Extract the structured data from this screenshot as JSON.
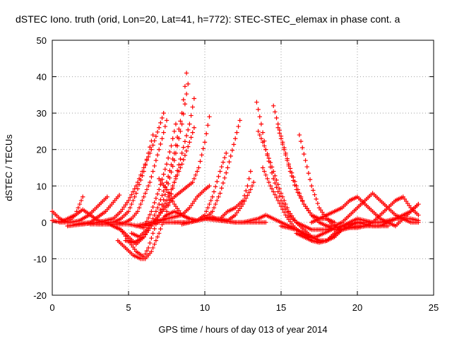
{
  "chart_data": {
    "type": "scatter",
    "title": "dSTEC Iono. truth (orid, Lon=20, Lat=41, h=772): STEC-STEC_elemax in phase cont. a",
    "xlabel": "GPS time / hours of day 013 of year 2014",
    "ylabel": "dSTEC  / TECUs",
    "xlim": [
      0,
      25
    ],
    "ylim": [
      -20,
      50
    ],
    "xticks": [
      0,
      5,
      10,
      15,
      20,
      25
    ],
    "yticks": [
      -20,
      -10,
      0,
      10,
      20,
      30,
      40,
      50
    ],
    "grid": true,
    "marker": "+",
    "color": "#ff0000",
    "series": [
      {
        "x": [
          0.0,
          0.5,
          1.0,
          1.5,
          2.0
        ],
        "y": [
          3,
          1,
          0,
          2,
          7
        ]
      },
      {
        "x": [
          0.0,
          0.6,
          1.2,
          1.8,
          2.4,
          3.0,
          3.6
        ],
        "y": [
          0.5,
          0,
          0,
          0.5,
          2,
          4.5,
          7
        ]
      },
      {
        "x": [
          0.5,
          1.0,
          1.5,
          2.0,
          2.5,
          3.0,
          3.5,
          4.0,
          4.4
        ],
        "y": [
          0,
          1,
          2,
          3.5,
          2,
          0.5,
          0,
          0,
          0
        ]
      },
      {
        "x": [
          1.0,
          2.0,
          3.0,
          4.0,
          4.5,
          5.0,
          5.5,
          6.0,
          6.5,
          7.0,
          7.3
        ],
        "y": [
          -1,
          -0.5,
          0,
          1,
          3,
          6,
          10,
          15,
          20,
          26,
          30
        ]
      },
      {
        "x": [
          1.5,
          2.5,
          3.5,
          4.0,
          4.4
        ],
        "y": [
          -0.5,
          0,
          3,
          5.5,
          7.5
        ]
      },
      {
        "x": [
          2.0,
          3.0,
          4.0,
          4.5,
          5.0,
          5.5,
          6.0,
          6.3,
          6.6
        ],
        "y": [
          -0.5,
          0,
          0,
          1,
          3,
          8,
          14,
          19,
          24
        ]
      },
      {
        "x": [
          2.5,
          3.5,
          4.3,
          4.8,
          5.2,
          5.6,
          6.0,
          6.4,
          6.8,
          7.2,
          7.5
        ],
        "y": [
          -0.5,
          -0.5,
          -0.5,
          0,
          1,
          3,
          7,
          11,
          17,
          23,
          28
        ]
      },
      {
        "x": [
          3.0,
          4.0,
          5.0,
          5.6,
          6.0,
          6.5,
          7.0,
          7.5,
          7.8,
          8.1
        ],
        "y": [
          -0.5,
          -0.5,
          -0.5,
          -1,
          -1.5,
          3,
          9,
          16,
          21,
          27
        ]
      },
      {
        "x": [
          3.5,
          4.0,
          4.5,
          5.0,
          5.5,
          6.0,
          6.5,
          7.0,
          7.5,
          8.0,
          8.5,
          8.8
        ],
        "y": [
          0,
          -1,
          -2,
          -4,
          -6,
          -4,
          0,
          5,
          11,
          19,
          30,
          41
        ]
      },
      {
        "x": [
          4.0,
          4.5,
          5.0,
          5.5,
          6.0,
          6.3,
          6.6,
          7.0,
          7.5,
          8.0,
          8.5,
          8.9
        ],
        "y": [
          -1,
          -2,
          -5,
          -8,
          -9.5,
          -7,
          -3,
          2,
          9,
          17,
          27,
          38
        ]
      },
      {
        "x": [
          4.3,
          4.8,
          5.3,
          5.8,
          6.1,
          6.5,
          7.0,
          7.5,
          8.0,
          8.5,
          9.0,
          9.3
        ],
        "y": [
          -5,
          -7,
          -9,
          -10,
          -10,
          -8,
          -3,
          3,
          11,
          19,
          27,
          34
        ]
      },
      {
        "x": [
          4.8,
          5.4,
          6.0,
          6.5,
          7.0,
          7.5,
          8.0,
          8.5,
          9.0,
          9.3
        ],
        "y": [
          -5,
          -5.5,
          -4,
          -1,
          2,
          6,
          11,
          16,
          22,
          26
        ]
      },
      {
        "x": [
          5.2,
          5.7,
          6.2,
          6.8,
          7.4,
          8.0,
          8.6,
          9.2,
          9.6,
          10.0,
          10.3
        ],
        "y": [
          -3,
          -4,
          -2,
          1,
          4,
          7,
          9,
          11,
          15,
          22,
          29
        ]
      },
      {
        "x": [
          5.5,
          6.5,
          7.5,
          8.5,
          9.0,
          9.5,
          10.0,
          10.3
        ],
        "y": [
          -1,
          0,
          1,
          2,
          4,
          7,
          9,
          10
        ]
      },
      {
        "x": [
          6.0,
          7.0,
          7.5,
          8.0,
          8.5,
          9.0,
          9.5,
          10.0,
          10.5,
          11.0,
          11.4
        ],
        "y": [
          -1,
          0,
          2,
          3,
          2,
          1,
          0.5,
          2,
          7,
          14,
          19
        ]
      },
      {
        "x": [
          7.0,
          7.5,
          8.0,
          8.5,
          9.0,
          9.5,
          10.0,
          10.5,
          11.0,
          11.5,
          12.0,
          12.3
        ],
        "y": [
          12,
          9,
          5,
          2,
          1,
          0.5,
          1,
          3,
          8,
          15,
          23,
          28
        ]
      },
      {
        "x": [
          7.2,
          8.0,
          9.0,
          10.0,
          11.0,
          11.5,
          12.0,
          12.5,
          12.8,
          13.0
        ],
        "y": [
          0,
          0,
          0,
          1,
          1,
          3,
          4,
          6,
          10,
          14
        ]
      },
      {
        "x": [
          8.0,
          9.0,
          10.0,
          11.0,
          11.5,
          12.0,
          12.5,
          13.0,
          13.2
        ],
        "y": [
          0,
          0,
          1,
          1,
          0.5,
          2,
          5,
          9,
          11
        ]
      },
      {
        "x": [
          8.5,
          9.0,
          9.5,
          10.0,
          10.5,
          11.0,
          12.0,
          13.0,
          14.0
        ],
        "y": [
          -0.5,
          0,
          0.5,
          1,
          1.5,
          0.5,
          0,
          0,
          0
        ]
      },
      {
        "x": [
          9.0,
          10.0,
          11.0,
          12.0,
          12.5,
          13.0,
          13.5,
          14.0,
          14.5,
          15.0,
          15.5,
          16.0,
          16.5,
          17.0,
          17.5,
          18.0
        ],
        "y": [
          0,
          1,
          0.5,
          0,
          0,
          0.5,
          1,
          2,
          1,
          0,
          -1,
          -2,
          -3,
          -4,
          -5,
          -5
        ]
      },
      {
        "x": [
          13.4,
          13.7,
          14.0,
          14.5,
          15.0,
          15.5,
          16.0,
          16.5,
          17.0,
          18.0,
          19.0,
          20.0
        ],
        "y": [
          33,
          27,
          20,
          12,
          6,
          2,
          0,
          -1,
          -2,
          -2,
          -1,
          0
        ]
      },
      {
        "x": [
          13.5,
          14.0,
          14.5,
          15.0,
          15.5,
          16.0,
          16.5,
          17.0,
          17.5,
          18.0,
          18.5,
          19.0
        ],
        "y": [
          25,
          20,
          14,
          8,
          3,
          0,
          -2,
          -4,
          -5,
          -5,
          -4,
          -2
        ]
      },
      {
        "x": [
          13.8,
          14.3,
          14.8,
          15.3,
          15.8,
          16.3,
          16.8,
          17.3,
          17.8,
          18.3
        ],
        "y": [
          15,
          10,
          6,
          2,
          -1,
          -3,
          -4,
          -4,
          -3,
          -2
        ]
      },
      {
        "x": [
          14.5,
          14.8,
          15.1,
          15.5,
          16.0,
          16.5,
          17.0,
          17.5,
          18.0,
          18.5,
          19.0,
          19.5
        ],
        "y": [
          32,
          27,
          22,
          16,
          10,
          5,
          2,
          0,
          -1,
          -2,
          -2,
          -1
        ]
      },
      {
        "x": [
          14.8,
          15.2,
          15.6,
          16.0,
          16.5,
          17.0,
          17.5,
          18.0,
          18.5
        ],
        "y": [
          26,
          20,
          14,
          9,
          5,
          2,
          1,
          1,
          0
        ]
      },
      {
        "x": [
          16.2,
          16.6,
          17.0,
          17.5,
          18.0,
          18.5,
          19.0,
          19.5,
          20.0,
          20.5,
          21.0
        ],
        "y": [
          24,
          17,
          10,
          4,
          1,
          -1,
          -2,
          -1,
          0,
          0,
          0
        ]
      },
      {
        "x": [
          15.0,
          16.0,
          16.5,
          17.0,
          17.5,
          18.0,
          18.5,
          19.0,
          19.5,
          20.0,
          21.0,
          22.0
        ],
        "y": [
          -1,
          -2,
          -3,
          -5,
          -5.5,
          -5,
          -3,
          -1,
          0,
          1,
          0,
          0
        ]
      },
      {
        "x": [
          16.0,
          16.5,
          17.0,
          17.5,
          18.0,
          19.0,
          20.0,
          21.0,
          22.0
        ],
        "y": [
          -3,
          -4,
          -5,
          -5.5,
          -5,
          -2,
          -1,
          -1,
          -1
        ]
      },
      {
        "x": [
          17.0,
          17.5,
          18.0,
          18.5,
          19.0,
          19.5,
          20.0,
          20.5,
          21.0,
          21.5,
          22.0,
          22.5,
          23.0,
          23.5,
          24.0
        ],
        "y": [
          0,
          1,
          2,
          3,
          4,
          6,
          7,
          5,
          3,
          1,
          0,
          -1,
          1,
          3,
          5
        ]
      },
      {
        "x": [
          18.0,
          18.5,
          19.0,
          19.5,
          20.0,
          20.5,
          21.0,
          21.5,
          22.0,
          22.5,
          23.0,
          23.5,
          24.0
        ],
        "y": [
          -1,
          -1,
          0,
          2,
          4,
          6,
          8,
          6,
          4,
          2,
          1,
          0,
          0
        ]
      },
      {
        "x": [
          19.0,
          19.5,
          20.0,
          20.5,
          21.0,
          21.5,
          22.0,
          22.5,
          23.0,
          23.5,
          24.0
        ],
        "y": [
          -1,
          -1.5,
          -1.5,
          -1,
          0,
          2,
          4,
          6,
          7,
          4,
          2
        ]
      },
      {
        "x": [
          20.0,
          20.5,
          21.0,
          21.5,
          22.0,
          22.5,
          23.0,
          23.5,
          24.0
        ],
        "y": [
          0,
          -0.5,
          -1,
          -1,
          0,
          1,
          2,
          3,
          5
        ]
      },
      {
        "x": [
          21.0,
          21.5,
          22.0,
          22.5,
          23.0,
          23.5,
          24.0
        ],
        "y": [
          0,
          0,
          0.5,
          1,
          1,
          1,
          0.5
        ]
      }
    ]
  }
}
